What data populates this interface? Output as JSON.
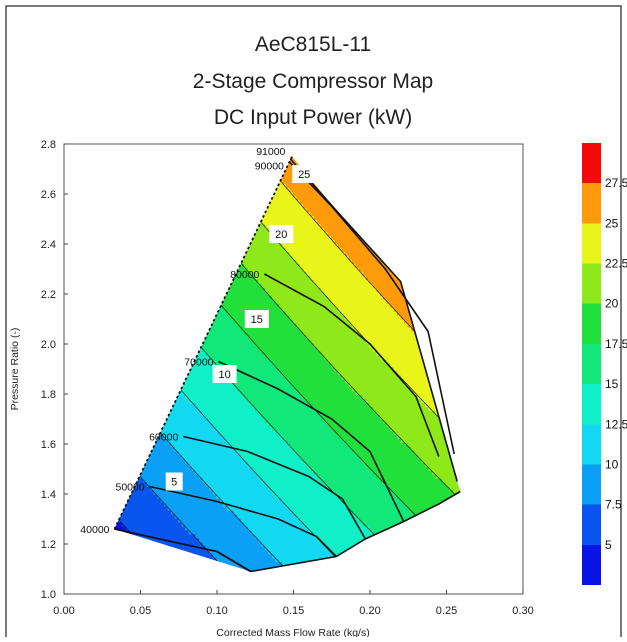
{
  "chart_data": {
    "type": "contour",
    "title_lines": [
      "AeC815L-11",
      "2-Stage Compressor Map",
      "DC Input Power (kW)"
    ],
    "xlabel": "Corrected Mass Flow Rate (kg/s)",
    "ylabel": "Pressure Ratio (-)",
    "xlim": [
      0.0,
      0.3
    ],
    "ylim": [
      1.0,
      2.8
    ],
    "x_ticks": [
      "0.00",
      "0.05",
      "0.10",
      "0.15",
      "0.20",
      "0.25",
      "0.30"
    ],
    "y_ticks": [
      "1.0",
      "1.2",
      "1.4",
      "1.6",
      "1.8",
      "2.0",
      "2.2",
      "2.4",
      "2.6",
      "2.8"
    ],
    "surge_line": [
      [
        0.033,
        1.26
      ],
      [
        0.149,
        2.75
      ]
    ],
    "speed_lines": [
      {
        "label": "40000",
        "points": [
          [
            0.033,
            1.26
          ],
          [
            0.07,
            1.21
          ],
          [
            0.1,
            1.17
          ],
          [
            0.122,
            1.09
          ]
        ]
      },
      {
        "label": "50000",
        "points": [
          [
            0.056,
            1.43
          ],
          [
            0.1,
            1.37
          ],
          [
            0.14,
            1.3
          ],
          [
            0.165,
            1.23
          ],
          [
            0.178,
            1.15
          ]
        ]
      },
      {
        "label": "60000",
        "points": [
          [
            0.078,
            1.63
          ],
          [
            0.12,
            1.57
          ],
          [
            0.16,
            1.47
          ],
          [
            0.182,
            1.38
          ],
          [
            0.197,
            1.22
          ]
        ]
      },
      {
        "label": "70000",
        "points": [
          [
            0.101,
            1.93
          ],
          [
            0.14,
            1.82
          ],
          [
            0.175,
            1.7
          ],
          [
            0.2,
            1.57
          ],
          [
            0.222,
            1.29
          ]
        ]
      },
      {
        "label": "80000",
        "points": [
          [
            0.131,
            2.28
          ],
          [
            0.17,
            2.15
          ],
          [
            0.2,
            2.0
          ],
          [
            0.23,
            1.79
          ],
          [
            0.245,
            1.55
          ]
        ]
      },
      {
        "label": "90000",
        "points": [
          [
            0.147,
            2.73
          ],
          [
            0.175,
            2.55
          ],
          [
            0.21,
            2.3
          ],
          [
            0.238,
            2.05
          ],
          [
            0.255,
            1.56
          ]
        ]
      },
      {
        "label": "91000",
        "points": [
          [
            0.148,
            2.74
          ],
          [
            0.18,
            2.52
          ],
          [
            0.22,
            2.25
          ],
          [
            0.257,
            1.45
          ]
        ]
      }
    ],
    "choke_line": [
      [
        0.122,
        1.09
      ],
      [
        0.178,
        1.15
      ],
      [
        0.197,
        1.22
      ],
      [
        0.222,
        1.29
      ],
      [
        0.245,
        1.36
      ],
      [
        0.259,
        1.41
      ]
    ],
    "contour_levels": [
      2.5,
      5,
      7.5,
      10,
      12.5,
      15,
      17.5,
      20,
      22.5,
      25,
      27.5
    ],
    "contour_labels": [
      "5",
      "10",
      "15",
      "20",
      "25"
    ],
    "colorbar": {
      "range": [
        2.5,
        30
      ],
      "ticks": [
        "5",
        "7.5",
        "10",
        "12.5",
        "15",
        "17.5",
        "20",
        "22.5",
        "25",
        "27.5"
      ],
      "colors": [
        "#0a14e6",
        "#0a55f0",
        "#0aa0f5",
        "#12d8f2",
        "#10f0c8",
        "#12e87a",
        "#22e03c",
        "#8ee81a",
        "#e8f41a",
        "#ff9a0a",
        "#f50a0a"
      ]
    }
  }
}
